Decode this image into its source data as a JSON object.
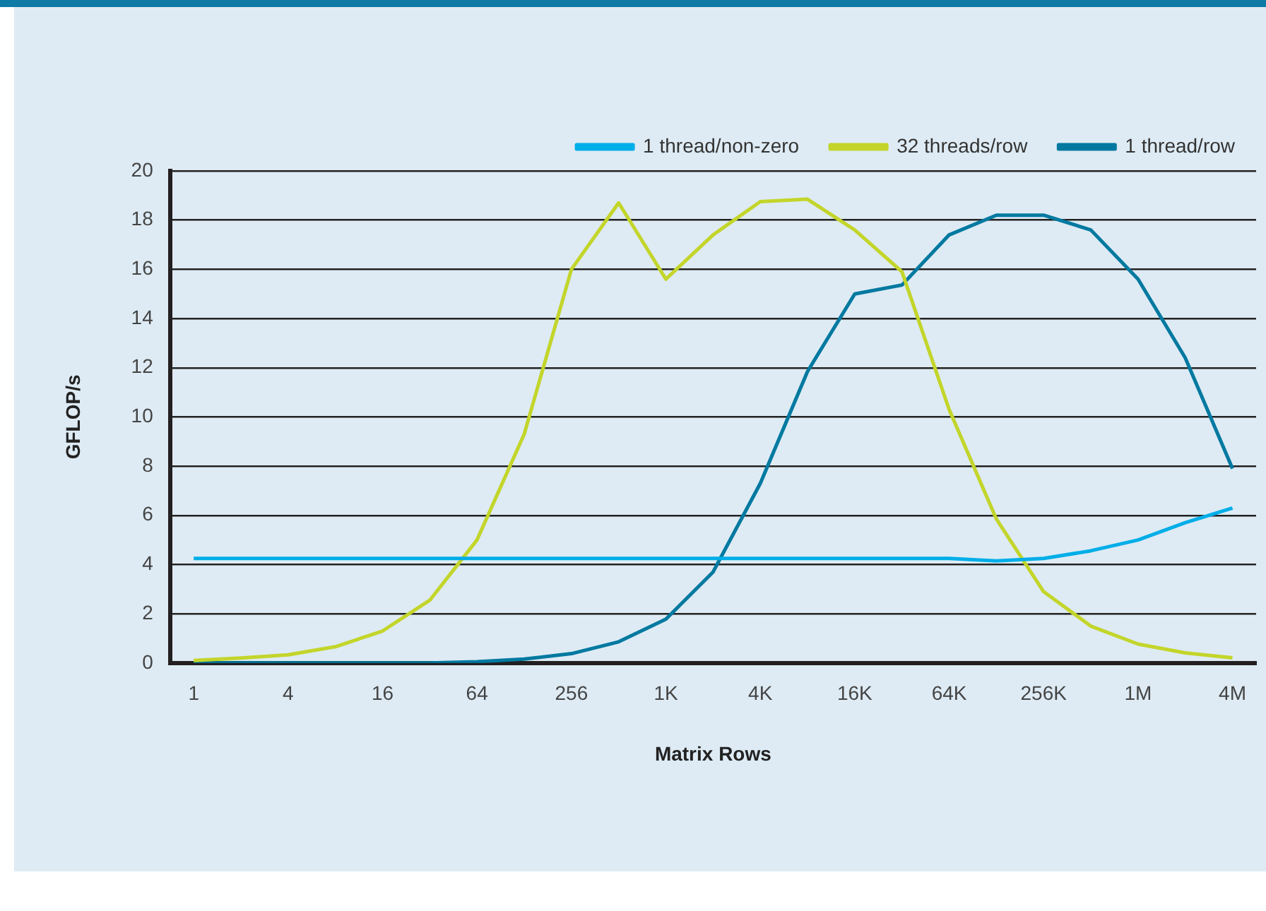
{
  "chart_data": {
    "type": "line",
    "xlabel": "Matrix Rows",
    "ylabel": "GFLOP/s",
    "categories": [
      "1",
      null,
      "4",
      null,
      "16",
      null,
      "64",
      null,
      "256",
      null,
      "1K",
      null,
      "4K",
      null,
      "16K",
      null,
      "64K",
      null,
      "256K",
      null,
      "1M",
      null,
      "4M"
    ],
    "series": [
      {
        "name": "1 thread/non-zero",
        "color": "#00aee8",
        "values": [
          4.25,
          4.25,
          4.25,
          4.25,
          4.25,
          4.25,
          4.25,
          4.25,
          4.25,
          4.25,
          4.25,
          4.25,
          4.25,
          4.25,
          4.25,
          4.25,
          4.25,
          4.15,
          4.25,
          4.56,
          5.0,
          5.7,
          6.3
        ]
      },
      {
        "name": "32 threads/row",
        "color": "#c3d52a",
        "values": [
          0.1,
          0.2,
          0.33,
          0.66,
          1.3,
          2.55,
          5.0,
          9.3,
          16.0,
          18.7,
          15.6,
          17.4,
          18.75,
          18.85,
          17.6,
          15.9,
          10.3,
          5.85,
          2.9,
          1.5,
          0.77,
          0.41,
          0.21
        ]
      },
      {
        "name": "1 thread/row",
        "color": "#0079a0",
        "values": [
          0,
          0,
          0,
          0,
          0,
          0,
          0.05,
          0.16,
          0.38,
          0.86,
          1.78,
          3.7,
          7.3,
          11.85,
          15.0,
          15.36,
          17.4,
          18.2,
          18.2,
          17.6,
          15.6,
          12.4,
          7.9
        ]
      }
    ],
    "ylim": [
      0,
      20
    ],
    "yticks": [
      0,
      2,
      4,
      6,
      8,
      10,
      12,
      14,
      16,
      18,
      20
    ],
    "grid": "y",
    "legend": "top right",
    "marker": "none",
    "line_style": "solid"
  }
}
